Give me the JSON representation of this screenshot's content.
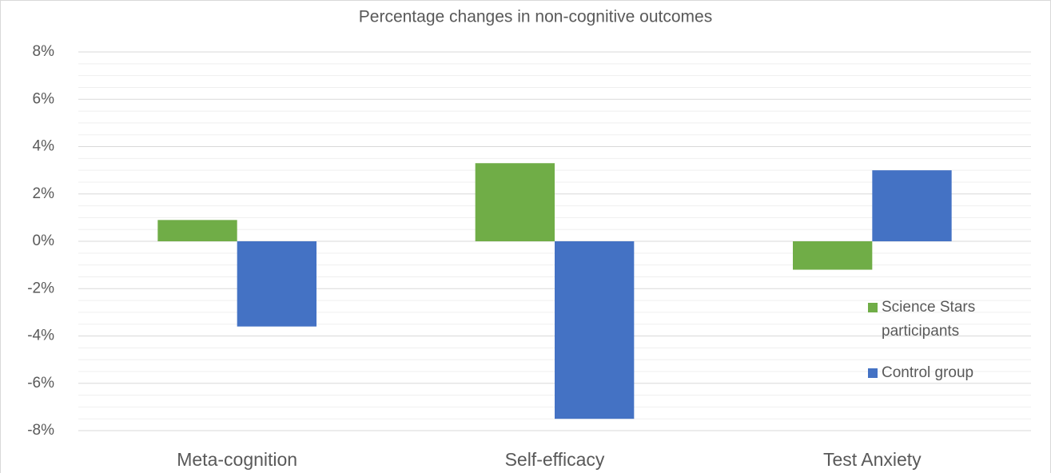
{
  "chart_data": {
    "type": "bar",
    "title": "Percentage changes in non-cognitive outcomes",
    "categories": [
      "Meta-cognition",
      "Self-efficacy",
      "Test Anxiety"
    ],
    "series": [
      {
        "name": "Science Stars participants",
        "color": "#70ad47",
        "values": [
          0.9,
          3.3,
          -1.2
        ]
      },
      {
        "name": "Control group",
        "color": "#4472c4",
        "values": [
          -3.6,
          -7.5,
          3.0
        ]
      }
    ],
    "ylim": [
      -8,
      8
    ],
    "yticks": [
      {
        "value": -8,
        "label": "-8%"
      },
      {
        "value": -6,
        "label": "-6%"
      },
      {
        "value": -4,
        "label": "-4%"
      },
      {
        "value": -2,
        "label": "-2%"
      },
      {
        "value": 0,
        "label": "0%"
      },
      {
        "value": 2,
        "label": "2%"
      },
      {
        "value": 4,
        "label": "4%"
      },
      {
        "value": 6,
        "label": "6%"
      },
      {
        "value": 8,
        "label": "8%"
      }
    ],
    "grid": true,
    "minor_grid": true,
    "legend": "right"
  }
}
